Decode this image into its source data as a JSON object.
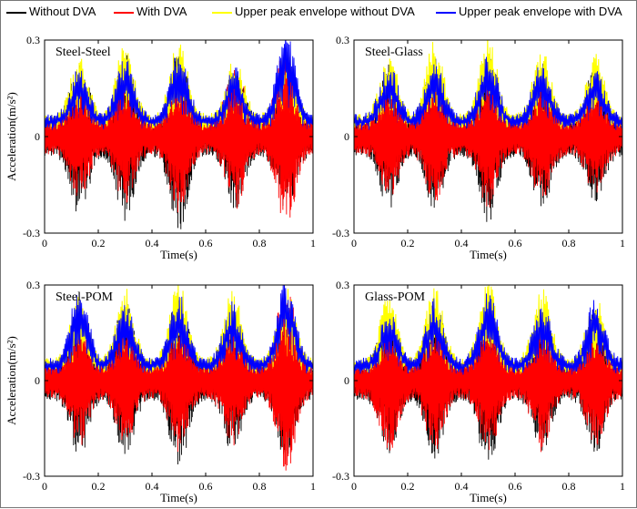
{
  "legend": [
    {
      "label": "Without DVA",
      "color": "#000000"
    },
    {
      "label": "With DVA",
      "color": "#ff0000"
    },
    {
      "label": "Upper peak envelope without DVA",
      "color": "#ffff00"
    },
    {
      "label": "Upper peak envelope with DVA",
      "color": "#0000ff"
    }
  ],
  "chart_data": [
    {
      "type": "line",
      "title": "Steel-Steel",
      "xlabel": "Time(s)",
      "ylabel": "Acceleration(m/s²)",
      "xlim": [
        0,
        1
      ],
      "ylim": [
        -0.3,
        0.3
      ],
      "xticks": [
        "0",
        "0.2",
        "0.4",
        "0.6",
        "0.8",
        "1"
      ],
      "yticks": [
        "-0.3",
        "0",
        "0.3"
      ],
      "peak_times": [
        0.13,
        0.3,
        0.5,
        0.71,
        0.9
      ],
      "series": [
        {
          "name": "Without DVA",
          "color": "#000000",
          "approx_upper_peaks": [
            0.22,
            0.24,
            0.26,
            0.18,
            0.22
          ],
          "approx_lower_peaks": [
            -0.23,
            -0.24,
            -0.28,
            -0.2,
            -0.22
          ]
        },
        {
          "name": "With DVA",
          "color": "#ff0000",
          "approx_upper_peaks": [
            0.16,
            0.18,
            0.2,
            0.2,
            0.3
          ],
          "approx_lower_peaks": [
            -0.17,
            -0.19,
            -0.22,
            -0.21,
            -0.3
          ]
        },
        {
          "name": "Upper peak envelope without DVA",
          "color": "#ffff00",
          "approx_upper_peaks": [
            0.21,
            0.26,
            0.26,
            0.2,
            0.24
          ]
        },
        {
          "name": "Upper peak envelope with DVA",
          "color": "#0000ff",
          "approx_upper_peaks": [
            0.17,
            0.2,
            0.23,
            0.17,
            0.3
          ]
        }
      ]
    },
    {
      "type": "line",
      "title": "Steel-Glass",
      "xlabel": "Time(s)",
      "ylabel": "",
      "xlim": [
        0,
        1
      ],
      "ylim": [
        -0.3,
        0.3
      ],
      "xticks": [
        "0",
        "0.2",
        "0.4",
        "0.6",
        "0.8",
        "1"
      ],
      "yticks": [
        "-0.3",
        "0",
        "0.3"
      ],
      "peak_times": [
        0.13,
        0.3,
        0.5,
        0.7,
        0.9
      ],
      "series": [
        {
          "name": "Without DVA",
          "color": "#000000",
          "approx_upper_peaks": [
            0.2,
            0.22,
            0.24,
            0.2,
            0.2
          ],
          "approx_lower_peaks": [
            -0.2,
            -0.2,
            -0.25,
            -0.2,
            -0.18
          ]
        },
        {
          "name": "With DVA",
          "color": "#ff0000",
          "approx_upper_peaks": [
            0.15,
            0.17,
            0.19,
            0.16,
            0.14
          ],
          "approx_lower_peaks": [
            -0.17,
            -0.18,
            -0.2,
            -0.18,
            -0.16
          ]
        },
        {
          "name": "Upper peak envelope without DVA",
          "color": "#ffff00",
          "approx_upper_peaks": [
            0.22,
            0.26,
            0.27,
            0.24,
            0.21
          ]
        },
        {
          "name": "Upper peak envelope with DVA",
          "color": "#0000ff",
          "approx_upper_peaks": [
            0.18,
            0.2,
            0.23,
            0.19,
            0.16
          ]
        }
      ]
    },
    {
      "type": "line",
      "title": "Steel-POM",
      "xlabel": "Time(s)",
      "ylabel": "Acceleration(m/s²)",
      "xlim": [
        0,
        1
      ],
      "ylim": [
        -0.3,
        0.3
      ],
      "xticks": [
        "0",
        "0.2",
        "0.4",
        "0.6",
        "0.8",
        "1"
      ],
      "yticks": [
        "-0.3",
        "0",
        "0.3"
      ],
      "peak_times": [
        0.13,
        0.3,
        0.5,
        0.7,
        0.9
      ],
      "series": [
        {
          "name": "Without DVA",
          "color": "#000000",
          "approx_upper_peaks": [
            0.22,
            0.24,
            0.26,
            0.2,
            0.22
          ],
          "approx_lower_peaks": [
            -0.22,
            -0.22,
            -0.26,
            -0.2,
            -0.24
          ]
        },
        {
          "name": "With DVA",
          "color": "#ff0000",
          "approx_upper_peaks": [
            0.17,
            0.18,
            0.2,
            0.18,
            0.3
          ],
          "approx_lower_peaks": [
            -0.18,
            -0.18,
            -0.21,
            -0.18,
            -0.28
          ]
        },
        {
          "name": "Upper peak envelope without DVA",
          "color": "#ffff00",
          "approx_upper_peaks": [
            0.23,
            0.25,
            0.27,
            0.25,
            0.26
          ]
        },
        {
          "name": "Upper peak envelope with DVA",
          "color": "#0000ff",
          "approx_upper_peaks": [
            0.26,
            0.2,
            0.23,
            0.2,
            0.3
          ]
        }
      ]
    },
    {
      "type": "line",
      "title": "Glass-POM",
      "xlabel": "Time(s)",
      "ylabel": "",
      "xlim": [
        0,
        1
      ],
      "ylim": [
        -0.3,
        0.3
      ],
      "xticks": [
        "0",
        "0.2",
        "0.4",
        "0.6",
        "0.8",
        "1"
      ],
      "yticks": [
        "-0.3",
        "0",
        "0.3"
      ],
      "peak_times": [
        0.13,
        0.3,
        0.5,
        0.7,
        0.9
      ],
      "series": [
        {
          "name": "Without DVA",
          "color": "#000000",
          "approx_upper_peaks": [
            0.21,
            0.23,
            0.25,
            0.2,
            0.2
          ],
          "approx_lower_peaks": [
            -0.2,
            -0.22,
            -0.27,
            -0.2,
            -0.2
          ]
        },
        {
          "name": "With DVA",
          "color": "#ff0000",
          "approx_upper_peaks": [
            0.16,
            0.17,
            0.19,
            0.17,
            0.16
          ],
          "approx_lower_peaks": [
            -0.2,
            -0.2,
            -0.22,
            -0.2,
            -0.18
          ]
        },
        {
          "name": "Upper peak envelope without DVA",
          "color": "#ffff00",
          "approx_upper_peaks": [
            0.23,
            0.26,
            0.27,
            0.25,
            0.22
          ]
        },
        {
          "name": "Upper peak envelope with DVA",
          "color": "#0000ff",
          "approx_upper_peaks": [
            0.18,
            0.21,
            0.24,
            0.2,
            0.22
          ]
        }
      ]
    }
  ]
}
